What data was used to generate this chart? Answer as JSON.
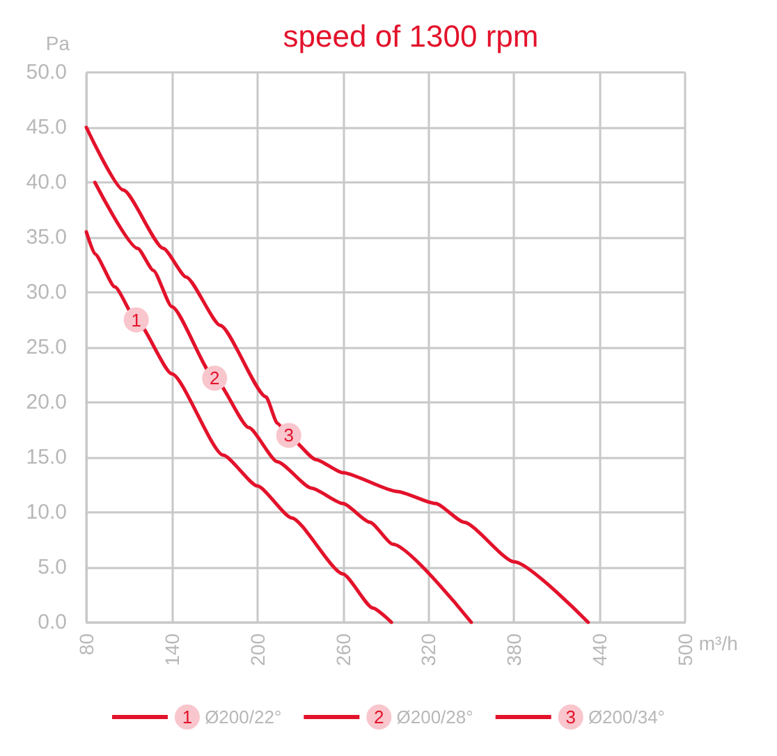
{
  "chart_data": {
    "type": "line",
    "title": "speed of 1300 rpm",
    "xlabel": "m³/h",
    "ylabel": "Pa",
    "series": [
      {
        "name": "Ø200/22°",
        "color": "#e3122b",
        "x": [
          80,
          86,
          100,
          115,
          140,
          176,
          200,
          224,
          260,
          281,
          294
        ],
        "values": [
          35.5,
          33.5,
          30.5,
          27.5,
          22.6,
          15.2,
          12.4,
          9.5,
          4.4,
          1.3,
          0
        ]
      },
      {
        "name": "Ø200/28°",
        "color": "#e3122b",
        "x": [
          86,
          116,
          127,
          140,
          170,
          194,
          214,
          238,
          260,
          279,
          295,
          350
        ],
        "values": [
          40,
          34,
          32,
          28.7,
          22.2,
          17.7,
          14.6,
          12.2,
          10.8,
          9.1,
          7.1,
          0
        ]
      },
      {
        "name": "Ø200/34°",
        "color": "#e3122b",
        "x": [
          80,
          106,
          134,
          150,
          174,
          206,
          214,
          222,
          241,
          260,
          298,
          325,
          345,
          380,
          432
        ],
        "values": [
          45,
          39.3,
          34,
          31.4,
          27,
          20.5,
          18.1,
          16.9,
          14.8,
          13.6,
          11.9,
          10.8,
          9.1,
          5.5,
          0
        ]
      }
    ],
    "annotations": [
      {
        "text": "1",
        "x": 115,
        "y": 27.5
      },
      {
        "text": "2",
        "x": 170,
        "y": 22.2
      },
      {
        "text": "3",
        "x": 222,
        "y": 17
      }
    ],
    "xlim": [
      80,
      500
    ],
    "xticks": [
      80,
      140,
      200,
      260,
      320,
      380,
      440,
      500
    ],
    "ylim": [
      0,
      50
    ],
    "yticks": [
      {
        "value": 0,
        "label": "0.0"
      },
      {
        "value": 5,
        "label": "5.0"
      },
      {
        "value": 10,
        "label": "10.0"
      },
      {
        "value": 15,
        "label": "15.0"
      },
      {
        "value": 20,
        "label": "20.0"
      },
      {
        "value": 25,
        "label": "25.0"
      },
      {
        "value": 30,
        "label": "30.0"
      },
      {
        "value": 35,
        "label": "35.0"
      },
      {
        "value": 40,
        "label": "40.0"
      },
      {
        "value": 45,
        "label": "45.0"
      },
      {
        "value": 50,
        "label": "50.0"
      }
    ],
    "grid": true,
    "legend": "bottom",
    "marker": "none",
    "line_style": "solid"
  }
}
